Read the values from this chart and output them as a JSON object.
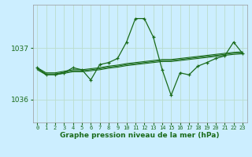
{
  "xlabel": "Graphe pression niveau de la mer (hPa)",
  "bg_color": "#cceeff",
  "grid_color": "#bbddcc",
  "line_color": "#1a6b1a",
  "xlim": [
    -0.5,
    23.5
  ],
  "ylim": [
    1035.55,
    1037.85
  ],
  "yticks": [
    1036,
    1037
  ],
  "xticks": [
    0,
    1,
    2,
    3,
    4,
    5,
    6,
    7,
    8,
    9,
    10,
    11,
    12,
    13,
    14,
    15,
    16,
    17,
    18,
    19,
    20,
    21,
    22,
    23
  ],
  "series": {
    "main": [
      1036.62,
      1036.48,
      1036.48,
      1036.52,
      1036.62,
      1036.58,
      1036.38,
      1036.68,
      1036.72,
      1036.8,
      1037.12,
      1037.58,
      1037.58,
      1037.22,
      1036.58,
      1036.08,
      1036.52,
      1036.48,
      1036.65,
      1036.72,
      1036.8,
      1036.85,
      1037.12,
      1036.9
    ],
    "line1": [
      1036.62,
      1036.52,
      1036.52,
      1036.55,
      1036.58,
      1036.58,
      1036.6,
      1036.62,
      1036.65,
      1036.67,
      1036.7,
      1036.72,
      1036.74,
      1036.76,
      1036.78,
      1036.78,
      1036.8,
      1036.82,
      1036.84,
      1036.86,
      1036.88,
      1036.9,
      1036.92,
      1036.93
    ],
    "line2": [
      1036.6,
      1036.5,
      1036.5,
      1036.53,
      1036.56,
      1036.56,
      1036.58,
      1036.6,
      1036.63,
      1036.65,
      1036.68,
      1036.7,
      1036.72,
      1036.74,
      1036.76,
      1036.76,
      1036.78,
      1036.8,
      1036.82,
      1036.84,
      1036.86,
      1036.88,
      1036.9,
      1036.91
    ],
    "line3": [
      1036.58,
      1036.48,
      1036.48,
      1036.51,
      1036.54,
      1036.54,
      1036.56,
      1036.58,
      1036.61,
      1036.63,
      1036.66,
      1036.68,
      1036.7,
      1036.72,
      1036.74,
      1036.74,
      1036.76,
      1036.78,
      1036.8,
      1036.82,
      1036.84,
      1036.86,
      1036.88,
      1036.89
    ]
  }
}
